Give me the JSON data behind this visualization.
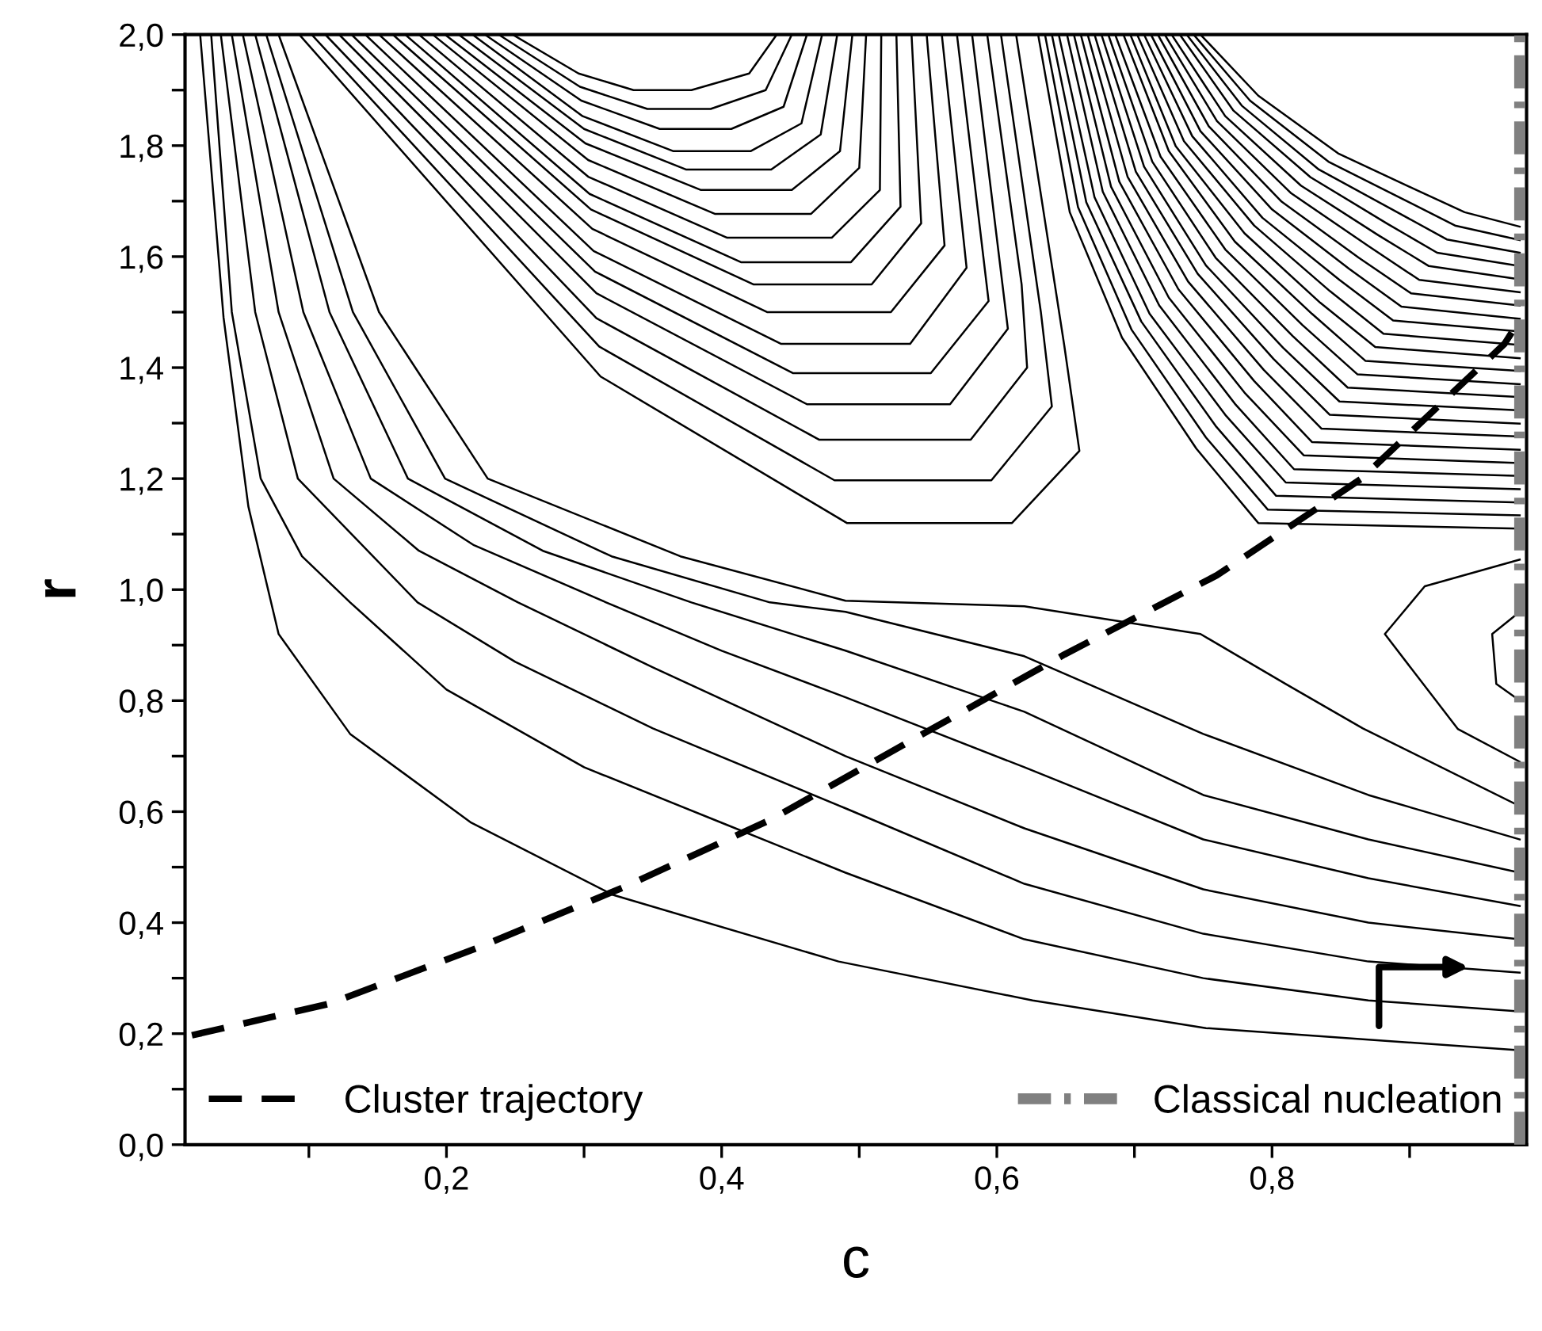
{
  "chart_data": {
    "type": "line",
    "xlabel": "c",
    "ylabel": "r",
    "xlim": [
      0.01,
      0.985
    ],
    "ylim": [
      0,
      2
    ],
    "xticks": [
      {
        "value": 0.1,
        "label": null
      },
      {
        "value": 0.2,
        "label": "0,2"
      },
      {
        "value": 0.3,
        "label": null
      },
      {
        "value": 0.4,
        "label": "0,4"
      },
      {
        "value": 0.5,
        "label": null
      },
      {
        "value": 0.6,
        "label": "0,6"
      },
      {
        "value": 0.7,
        "label": null
      },
      {
        "value": 0.8,
        "label": "0,8"
      },
      {
        "value": 0.9,
        "label": null
      }
    ],
    "yticks": [
      {
        "value": 0,
        "label": "0,0"
      },
      {
        "value": 0.1,
        "label": null
      },
      {
        "value": 0.2,
        "label": "0,2"
      },
      {
        "value": 0.3,
        "label": null
      },
      {
        "value": 0.4,
        "label": "0,4"
      },
      {
        "value": 0.5,
        "label": null
      },
      {
        "value": 0.6,
        "label": "0,6"
      },
      {
        "value": 0.7,
        "label": null
      },
      {
        "value": 0.8,
        "label": "0,8"
      },
      {
        "value": 0.9,
        "label": null
      },
      {
        "value": 1.0,
        "label": "1,0"
      },
      {
        "value": 1.1,
        "label": null
      },
      {
        "value": 1.2,
        "label": "1,2"
      },
      {
        "value": 1.3,
        "label": null
      },
      {
        "value": 1.4,
        "label": "1,4"
      },
      {
        "value": 1.5,
        "label": null
      },
      {
        "value": 1.6,
        "label": "1,6"
      },
      {
        "value": 1.7,
        "label": null
      },
      {
        "value": 1.8,
        "label": "1,8"
      },
      {
        "value": 1.9,
        "label": null
      },
      {
        "value": 2.0,
        "label": "2,0"
      }
    ],
    "legend": "bottom",
    "series": [
      {
        "color": "#000000",
        "x": [
          0.021,
          0.038,
          0.056,
          0.078,
          0.13,
          0.218,
          0.321,
          0.485,
          0.626,
          0.752,
          0.866,
          0.98
        ],
        "values": [
          2.0,
          1.49,
          1.15,
          0.92,
          0.74,
          0.58,
          0.45,
          0.33,
          0.26,
          0.21,
          0.19,
          0.17
        ]
      },
      {
        "color": "#000000",
        "x": [
          0.029,
          0.044,
          0.065,
          0.095,
          0.13,
          0.2,
          0.3,
          0.4,
          0.49,
          0.62,
          0.75,
          0.87,
          0.98
        ],
        "values": [
          2.0,
          1.5,
          1.2,
          1.06,
          0.977,
          0.82,
          0.68,
          0.58,
          0.49,
          0.37,
          0.3,
          0.26,
          0.24
        ]
      },
      {
        "color": "#000000",
        "x": [
          0.036,
          0.061,
          0.092,
          0.179,
          0.25,
          0.35,
          0.49,
          0.62,
          0.75,
          0.87,
          0.98
        ],
        "values": [
          2.0,
          1.5,
          1.2,
          0.977,
          0.87,
          0.75,
          0.606,
          0.47,
          0.38,
          0.33,
          0.31
        ]
      },
      {
        "color": "#000000",
        "x": [
          0.044,
          0.078,
          0.118,
          0.18,
          0.252,
          0.35,
          0.49,
          0.62,
          0.75,
          0.87,
          0.98
        ],
        "values": [
          2.0,
          1.5,
          1.2,
          1.07,
          0.977,
          0.86,
          0.7,
          0.57,
          0.46,
          0.4,
          0.37
        ]
      },
      {
        "color": "#000000",
        "x": [
          0.052,
          0.096,
          0.145,
          0.22,
          0.316,
          0.4,
          0.49,
          0.62,
          0.75,
          0.87,
          0.98
        ],
        "values": [
          2.0,
          1.5,
          1.2,
          1.08,
          0.977,
          0.89,
          0.806,
          0.68,
          0.55,
          0.48,
          0.43
        ]
      },
      {
        "color": "#000000",
        "x": [
          0.061,
          0.115,
          0.172,
          0.27,
          0.378,
          0.49,
          0.62,
          0.75,
          0.87,
          0.98
        ],
        "values": [
          2.0,
          1.5,
          1.2,
          1.07,
          0.977,
          0.89,
          0.78,
          0.63,
          0.55,
          0.49
        ]
      },
      {
        "color": "#000000",
        "x": [
          0.069,
          0.132,
          0.199,
          0.32,
          0.435,
          0.49,
          0.62,
          0.75,
          0.87,
          0.98
        ],
        "values": [
          2.0,
          1.5,
          1.2,
          1.06,
          0.977,
          0.96,
          0.88,
          0.74,
          0.63,
          0.55
        ]
      },
      {
        "color": "#000000",
        "x": [
          0.078,
          0.151,
          0.23,
          0.37,
          0.49,
          0.62,
          0.748,
          0.81,
          0.866,
          0.98
        ],
        "values": [
          2.0,
          1.5,
          1.2,
          1.06,
          0.98,
          0.97,
          0.92,
          0.83,
          0.75,
          0.61
        ]
      },
      {
        "color": "#000000",
        "x": [
          0.248,
          0.296,
          0.336,
          0.378,
          0.42,
          0.44
        ],
        "values": [
          2.0,
          1.93,
          1.9,
          1.9,
          1.93,
          2.0
        ]
      },
      {
        "color": "#000000",
        "x": [
          0.238,
          0.297,
          0.346,
          0.392,
          0.432,
          0.451
        ],
        "values": [
          2.0,
          1.906,
          1.866,
          1.866,
          1.9,
          2.0
        ]
      },
      {
        "color": "#000000",
        "x": [
          0.228,
          0.298,
          0.355,
          0.407,
          0.445,
          0.462
        ],
        "values": [
          2.0,
          1.881,
          1.83,
          1.83,
          1.87,
          2.0
        ]
      },
      {
        "color": "#000000",
        "x": [
          0.219,
          0.299,
          0.365,
          0.421,
          0.458,
          0.473
        ],
        "values": [
          2.0,
          1.853,
          1.79,
          1.79,
          1.84,
          2.0
        ]
      },
      {
        "color": "#000000",
        "x": [
          0.209,
          0.3,
          0.374,
          0.436,
          0.472,
          0.484
        ],
        "values": [
          2.0,
          1.83,
          1.757,
          1.757,
          1.82,
          2.0
        ]
      },
      {
        "color": "#000000",
        "x": [
          0.199,
          0.301,
          0.385,
          0.451,
          0.486,
          0.495
        ],
        "values": [
          2.0,
          1.804,
          1.72,
          1.72,
          1.79,
          2.0
        ]
      },
      {
        "color": "#000000",
        "x": [
          0.19,
          0.303,
          0.395,
          0.465,
          0.5,
          0.505
        ],
        "values": [
          2.0,
          1.774,
          1.677,
          1.677,
          1.76,
          2.0
        ]
      },
      {
        "color": "#000000",
        "x": [
          0.18,
          0.303,
          0.404,
          0.48,
          0.515,
          0.516
        ],
        "values": [
          2.0,
          1.744,
          1.634,
          1.634,
          1.72,
          2.0
        ]
      },
      {
        "color": "#000000",
        "x": [
          0.17,
          0.304,
          0.414,
          0.494,
          0.53,
          0.527
        ],
        "values": [
          2.0,
          1.713,
          1.59,
          1.59,
          1.69,
          2.0
        ]
      },
      {
        "color": "#000000",
        "x": [
          0.161,
          0.305,
          0.423,
          0.509,
          0.545,
          0.538
        ],
        "values": [
          2.0,
          1.685,
          1.55,
          1.55,
          1.66,
          2.0
        ]
      },
      {
        "color": "#000000",
        "x": [
          0.151,
          0.306,
          0.433,
          0.523,
          0.562,
          0.549
        ],
        "values": [
          2.0,
          1.65,
          1.5,
          1.5,
          1.62,
          2.0
        ]
      },
      {
        "color": "#000000",
        "x": [
          0.141,
          0.307,
          0.443,
          0.537,
          0.578,
          0.56
        ],
        "values": [
          2.0,
          1.61,
          1.443,
          1.443,
          1.58,
          2.0
        ]
      },
      {
        "color": "#000000",
        "x": [
          0.131,
          0.308,
          0.452,
          0.552,
          0.594,
          0.571
        ],
        "values": [
          2.0,
          1.573,
          1.39,
          1.39,
          1.52,
          2.0
        ]
      },
      {
        "color": "#000000",
        "x": [
          0.122,
          0.309,
          0.462,
          0.566,
          0.608,
          0.582
        ],
        "values": [
          2.0,
          1.534,
          1.334,
          1.334,
          1.47,
          2.0
        ]
      },
      {
        "color": "#000000",
        "x": [
          0.112,
          0.309,
          0.471,
          0.581,
          0.622,
          0.618,
          0.593
        ],
        "values": [
          2.0,
          1.489,
          1.27,
          1.27,
          1.4,
          1.55,
          2.0
        ]
      },
      {
        "color": "#000000",
        "x": [
          0.102,
          0.311,
          0.482,
          0.596,
          0.64,
          0.632,
          0.603
        ],
        "values": [
          2.0,
          1.438,
          1.197,
          1.197,
          1.33,
          1.5,
          2.0
        ]
      },
      {
        "color": "#000000",
        "x": [
          0.093,
          0.312,
          0.491,
          0.611,
          0.66,
          0.649,
          0.614
        ],
        "values": [
          2.0,
          1.384,
          1.12,
          1.12,
          1.25,
          1.44,
          2.0
        ]
      },
      {
        "color": "#000000",
        "x": [
          0.63,
          0.653,
          0.691,
          0.745,
          0.79,
          0.98
        ],
        "values": [
          2.0,
          1.68,
          1.454,
          1.254,
          1.12,
          1.11
        ]
      },
      {
        "color": "#000000",
        "x": [
          0.635,
          0.659,
          0.698,
          0.752,
          0.797,
          0.98
        ],
        "values": [
          2.0,
          1.689,
          1.468,
          1.274,
          1.144,
          1.134
        ]
      },
      {
        "color": "#000000",
        "x": [
          0.64,
          0.665,
          0.705,
          0.759,
          0.803,
          0.98
        ],
        "values": [
          2.0,
          1.698,
          1.483,
          1.295,
          1.169,
          1.157
        ]
      },
      {
        "color": "#000000",
        "x": [
          0.645,
          0.671,
          0.711,
          0.766,
          0.81,
          0.98
        ],
        "values": [
          2.0,
          1.707,
          1.497,
          1.315,
          1.193,
          1.181
        ]
      },
      {
        "color": "#000000",
        "x": [
          0.651,
          0.677,
          0.718,
          0.773,
          0.816,
          0.98
        ],
        "values": [
          2.0,
          1.717,
          1.512,
          1.335,
          1.217,
          1.205
        ]
      },
      {
        "color": "#000000",
        "x": [
          0.656,
          0.683,
          0.725,
          0.78,
          0.823,
          0.98
        ],
        "values": [
          2.0,
          1.726,
          1.526,
          1.355,
          1.242,
          1.228
        ]
      },
      {
        "color": "#000000",
        "x": [
          0.661,
          0.689,
          0.732,
          0.787,
          0.829,
          0.98
        ],
        "values": [
          2.0,
          1.735,
          1.541,
          1.376,
          1.266,
          1.252
        ]
      },
      {
        "color": "#000000",
        "x": [
          0.666,
          0.695,
          0.739,
          0.794,
          0.836,
          0.98
        ],
        "values": [
          2.0,
          1.744,
          1.555,
          1.396,
          1.29,
          1.276
        ]
      },
      {
        "color": "#000000",
        "x": [
          0.671,
          0.701,
          0.746,
          0.801,
          0.842,
          0.98
        ],
        "values": [
          2.0,
          1.753,
          1.569,
          1.416,
          1.315,
          1.299
        ]
      },
      {
        "color": "#000000",
        "x": [
          0.676,
          0.707,
          0.752,
          0.808,
          0.849,
          0.98
        ],
        "values": [
          2.0,
          1.762,
          1.584,
          1.436,
          1.339,
          1.323
        ]
      },
      {
        "color": "#000000",
        "x": [
          0.681,
          0.713,
          0.759,
          0.815,
          0.855,
          0.98
        ],
        "values": [
          2.0,
          1.771,
          1.598,
          1.457,
          1.364,
          1.347
        ]
      },
      {
        "color": "#000000",
        "x": [
          0.686,
          0.719,
          0.766,
          0.822,
          0.862,
          0.98
        ],
        "values": [
          2.0,
          1.78,
          1.613,
          1.477,
          1.388,
          1.37
        ]
      },
      {
        "color": "#000000",
        "x": [
          0.692,
          0.725,
          0.773,
          0.829,
          0.868,
          0.98
        ],
        "values": [
          2.0,
          1.79,
          1.627,
          1.497,
          1.412,
          1.394
        ]
      },
      {
        "color": "#000000",
        "x": [
          0.697,
          0.73,
          0.78,
          0.835,
          0.875,
          0.98
        ],
        "values": [
          2.0,
          1.799,
          1.642,
          1.517,
          1.437,
          1.417
        ]
      },
      {
        "color": "#000000",
        "x": [
          0.702,
          0.736,
          0.787,
          0.842,
          0.881,
          0.98
        ],
        "values": [
          2.0,
          1.808,
          1.656,
          1.538,
          1.461,
          1.441
        ]
      },
      {
        "color": "#000000",
        "x": [
          0.707,
          0.742,
          0.793,
          0.849,
          0.888,
          0.98
        ],
        "values": [
          2.0,
          1.817,
          1.67,
          1.558,
          1.485,
          1.465
        ]
      },
      {
        "color": "#000000",
        "x": [
          0.712,
          0.748,
          0.8,
          0.856,
          0.894,
          0.98
        ],
        "values": [
          2.0,
          1.826,
          1.685,
          1.578,
          1.51,
          1.488
        ]
      },
      {
        "color": "#000000",
        "x": [
          0.717,
          0.754,
          0.807,
          0.863,
          0.901,
          0.98
        ],
        "values": [
          2.0,
          1.835,
          1.699,
          1.598,
          1.534,
          1.512
        ]
      },
      {
        "color": "#000000",
        "x": [
          0.722,
          0.76,
          0.814,
          0.87,
          0.907,
          0.98
        ],
        "values": [
          2.0,
          1.844,
          1.714,
          1.619,
          1.558,
          1.536
        ]
      },
      {
        "color": "#000000",
        "x": [
          0.727,
          0.766,
          0.821,
          0.877,
          0.914,
          0.98
        ],
        "values": [
          2.0,
          1.853,
          1.728,
          1.639,
          1.583,
          1.559
        ]
      },
      {
        "color": "#000000",
        "x": [
          0.733,
          0.772,
          0.828,
          0.884,
          0.92,
          0.98
        ],
        "values": [
          2.0,
          1.863,
          1.743,
          1.659,
          1.607,
          1.583
        ]
      },
      {
        "color": "#000000",
        "x": [
          0.738,
          0.778,
          0.834,
          0.891,
          0.927,
          0.98
        ],
        "values": [
          2.0,
          1.872,
          1.757,
          1.68,
          1.631,
          1.607
        ]
      },
      {
        "color": "#000000",
        "x": [
          0.743,
          0.784,
          0.841,
          0.898,
          0.933,
          0.98
        ],
        "values": [
          2.0,
          1.881,
          1.771,
          1.7,
          1.656,
          1.63
        ]
      },
      {
        "color": "#000000",
        "x": [
          0.748,
          0.79,
          0.848,
          0.905,
          0.94,
          0.98
        ],
        "values": [
          2.0,
          1.89,
          1.786,
          1.72,
          1.68,
          1.654
        ]
      },
      {
        "color": "#000000",
        "x": [
          0.98,
          0.935,
          0.882,
          0.911,
          0.98
        ],
        "values": [
          0.69,
          0.749,
          0.92,
          1.006,
          1.054
        ]
      },
      {
        "color": "#000000",
        "x": [
          0.98,
          0.96,
          0.963,
          0.98
        ],
        "values": [
          0.96,
          0.92,
          0.83,
          0.8
        ]
      },
      {
        "name": "Cluster trajectory",
        "color": "#000000",
        "line_style": "dashed",
        "x": [
          0.015,
          0.115,
          0.222,
          0.328,
          0.436,
          0.542,
          0.649,
          0.76,
          0.865,
          0.969,
          0.98
        ],
        "values": [
          0.197,
          0.254,
          0.354,
          0.463,
          0.586,
          0.734,
          0.883,
          1.026,
          1.2,
          1.443,
          1.486
        ]
      },
      {
        "name": "Classical nucleation",
        "color": "#808080",
        "line_style": "dashdot",
        "x": [
          0.98,
          0.98
        ],
        "values": [
          0,
          2
        ]
      }
    ]
  }
}
